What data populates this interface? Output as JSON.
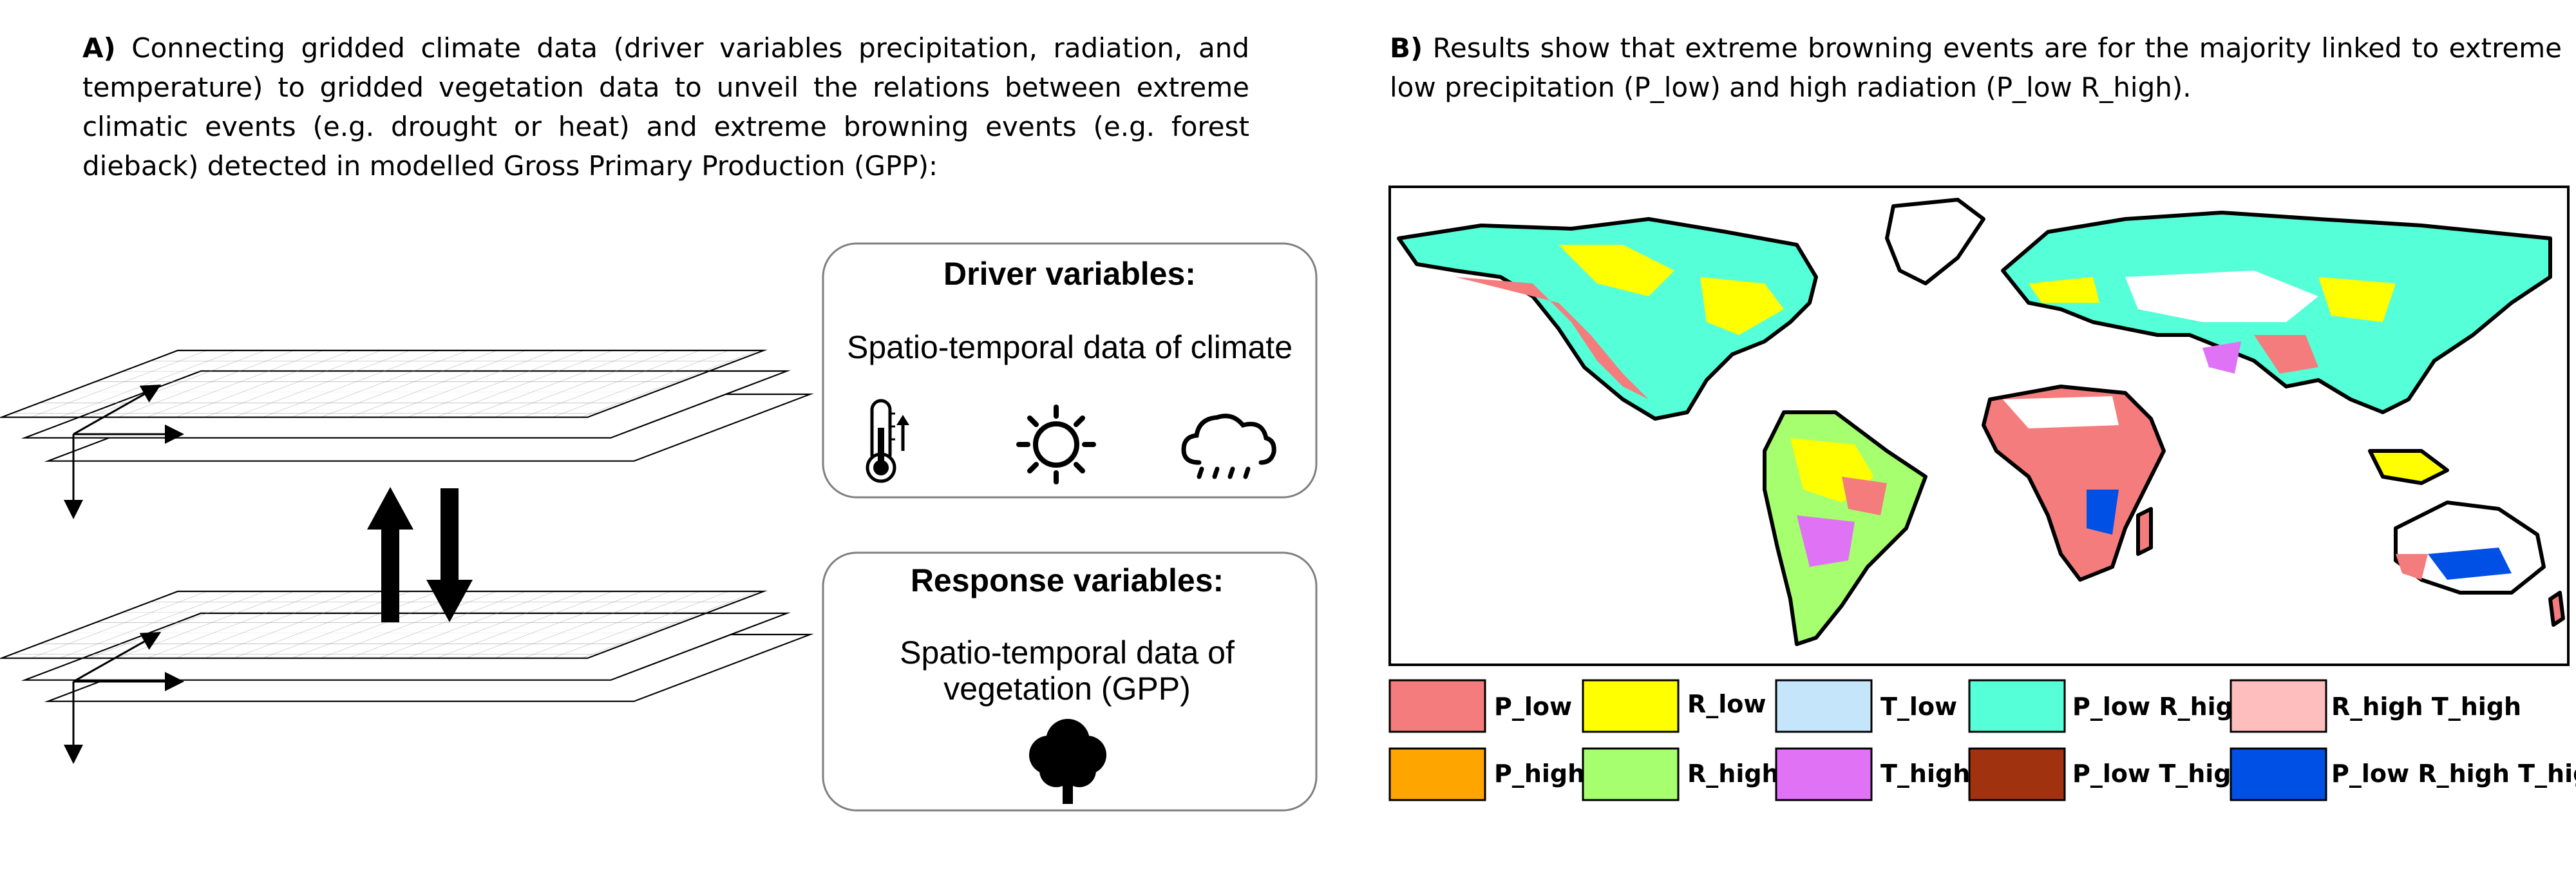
{
  "panel_a": {
    "letter": "A)",
    "text": "Connecting gridded climate data (driver variables precipitation, radiation, and temperature) to gridded vegetation data to unveil the relations between extreme climatic events (e.g. drought or heat) and extreme browning events (e.g. forest dieback) detected in modelled Gross Primary Production (GPP):",
    "driver_box": {
      "title": "Driver variables:",
      "subtitle": "Spatio-temporal data of climate",
      "icons": [
        "thermometer-icon",
        "sun-icon",
        "rain-cloud-icon"
      ]
    },
    "response_box": {
      "title": "Response variables:",
      "line1": "Spatio-temporal data of",
      "line2": "vegetation (GPP)",
      "icons": [
        "tree-icon"
      ]
    }
  },
  "panel_b": {
    "letter": "B)",
    "text": "Results show that extreme browning events are for the majority linked to extreme low precipitation (P_low) and high radiation (P_low R_high).",
    "legend": [
      {
        "label": "P_low",
        "color": "#F47C7C"
      },
      {
        "label": "R_low",
        "color": "#FFFF00"
      },
      {
        "label": "T_low",
        "color": "#C5E5FA"
      },
      {
        "label": "P_low R_high",
        "color": "#55FFD7"
      },
      {
        "label": "R_high T_high",
        "color": "#FFBEBE"
      },
      {
        "label": "P_high",
        "color": "#FFA500"
      },
      {
        "label": "R_high",
        "color": "#A5FF6E"
      },
      {
        "label": "T_high",
        "color": "#E072F5"
      },
      {
        "label": "P_low T_high",
        "color": "#A03210"
      },
      {
        "label": "P_low R_high T_high",
        "color": "#0050E6"
      }
    ]
  }
}
